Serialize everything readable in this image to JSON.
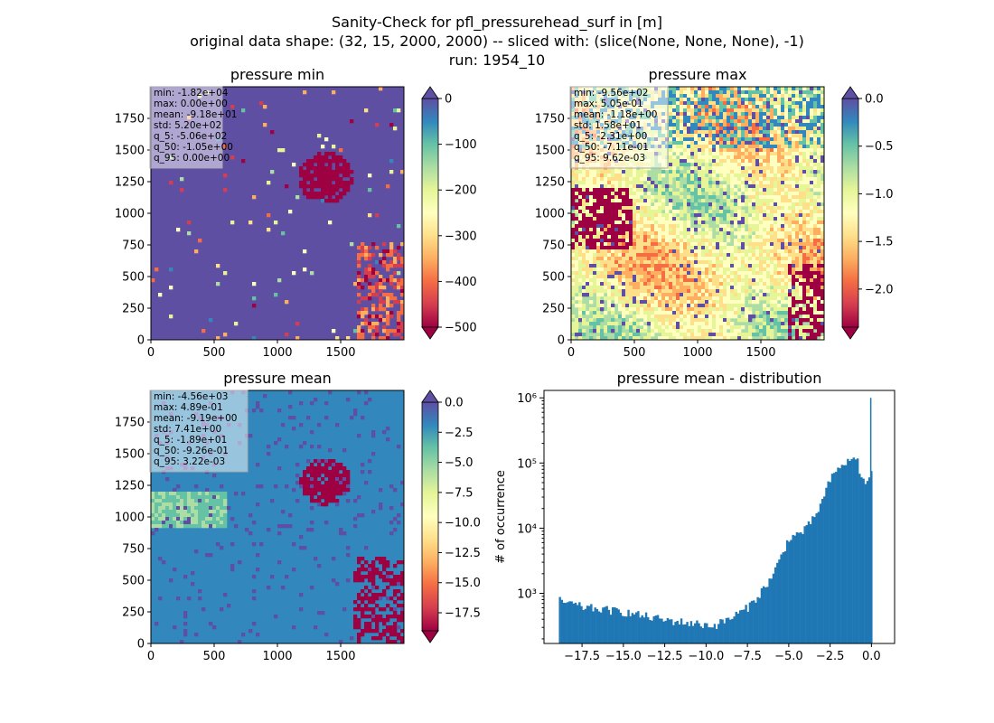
{
  "figure": {
    "title_lines": [
      "Sanity-Check for pfl_pressurehead_surf in [m]",
      "original data shape: (32, 15, 2000, 2000) -- sliced with: (slice(None, None, None), -1)",
      "run: 1954_10"
    ]
  },
  "colormap_spectral": [
    "#5e4fa2",
    "#3288bd",
    "#66c2a5",
    "#abdda4",
    "#e6f598",
    "#ffffbf",
    "#fee08b",
    "#fdae61",
    "#f46d43",
    "#d53e4f",
    "#9e0142"
  ],
  "chart_data": [
    {
      "type": "heatmap",
      "title": "pressure min",
      "xlim": [
        0,
        2000
      ],
      "ylim": [
        0,
        2000
      ],
      "xticks": [
        "0",
        "500",
        "1000",
        "1500"
      ],
      "yticks": [
        "0",
        "250",
        "500",
        "750",
        "1000",
        "1250",
        "1500",
        "1750"
      ],
      "colorbar": {
        "range": [
          -500,
          0
        ],
        "ticks": [
          "0",
          "−100",
          "−200",
          "−300",
          "−400",
          "−500"
        ],
        "extend": "both"
      },
      "stats": [
        "min: -1.82e+04",
        "max: 0.00e+00",
        "mean: -9.18e+01",
        "std: 5.20e+02",
        "q_5: -5.06e+02",
        "q_50: -1.05e+00",
        "q_95: 0.00e+00"
      ],
      "dominant_value": 0
    },
    {
      "type": "heatmap",
      "title": "pressure max",
      "xlim": [
        0,
        2000
      ],
      "ylim": [
        0,
        2000
      ],
      "xticks": [
        "0",
        "500",
        "1000",
        "1500"
      ],
      "yticks": [
        "0",
        "250",
        "500",
        "750",
        "1000",
        "1250",
        "1500",
        "1750"
      ],
      "colorbar": {
        "range": [
          -2.4,
          0
        ],
        "ticks": [
          "0.0",
          "−0.5",
          "−1.0",
          "−1.5",
          "−2.0"
        ],
        "extend": "both"
      },
      "stats": [
        "min: -9.56e+02",
        "max: 5.05e-01",
        "mean: -1.18e+00",
        "std: 1.58e+01",
        "q_5: -2.31e+00",
        "q_50: -7.11e-01",
        "q_95: 9.62e-03"
      ],
      "dominant_value": -0.7
    },
    {
      "type": "heatmap",
      "title": "pressure mean",
      "xlim": [
        0,
        2000
      ],
      "ylim": [
        0,
        2000
      ],
      "xticks": [
        "0",
        "500",
        "1000",
        "1500"
      ],
      "yticks": [
        "0",
        "250",
        "500",
        "750",
        "1000",
        "1250",
        "1500",
        "1750"
      ],
      "colorbar": {
        "range": [
          -19,
          0
        ],
        "ticks": [
          "0.0",
          "−2.5",
          "−5.0",
          "−7.5",
          "−10.0",
          "−12.5",
          "−15.0",
          "−17.5"
        ],
        "extend": "both"
      },
      "stats": [
        "min: -4.56e+03",
        "max: 4.89e-01",
        "mean: -9.19e+00",
        "std: 7.41e+00",
        "q_5: -1.89e+01",
        "q_50: -9.26e-01",
        "q_95: 3.22e-03"
      ],
      "dominant_value": -1
    },
    {
      "type": "bar",
      "title": "pressure mean - distribution",
      "ylabel": "# of occurrence",
      "yscale": "log",
      "xlim": [
        -19.8,
        1.4
      ],
      "ylim": [
        170,
        1300000
      ],
      "xticks": [
        "−17.5",
        "−15.0",
        "−12.5",
        "−10.0",
        "−7.5",
        "−5.0",
        "−2.5",
        "0.0"
      ],
      "yticks": [
        "10³",
        "10⁴",
        "10⁵",
        "10⁶"
      ],
      "color": "#1f77b4",
      "bin_range": [
        -18.9,
        0.05
      ],
      "profile": [
        [
          -18.9,
          780
        ],
        [
          -17.5,
          620
        ],
        [
          -15.0,
          520
        ],
        [
          -12.5,
          390
        ],
        [
          -10.5,
          340
        ],
        [
          -9.5,
          320
        ],
        [
          -8.5,
          420
        ],
        [
          -7.5,
          600
        ],
        [
          -6.8,
          950
        ],
        [
          -6.0,
          1800
        ],
        [
          -5.5,
          3500
        ],
        [
          -5.0,
          7000
        ],
        [
          -4.5,
          8000
        ],
        [
          -4.0,
          9500
        ],
        [
          -3.5,
          14000
        ],
        [
          -3.0,
          25000
        ],
        [
          -2.5,
          55000
        ],
        [
          -1.8,
          95000
        ],
        [
          -1.2,
          110000
        ],
        [
          -0.9,
          130000
        ],
        [
          -0.6,
          55000
        ],
        [
          -0.3,
          50000
        ],
        [
          -0.05,
          70000
        ]
      ],
      "spike": {
        "x": 0.0,
        "count": 1000000
      }
    }
  ]
}
